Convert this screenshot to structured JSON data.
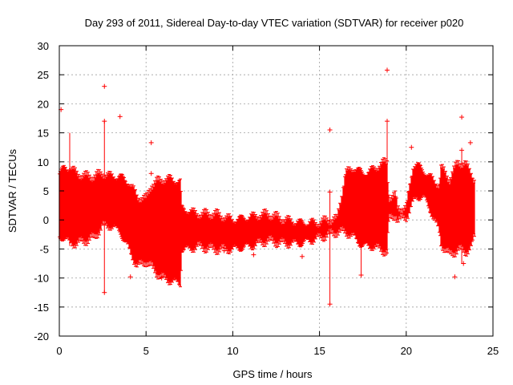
{
  "chart_data": {
    "type": "scatter",
    "title": "Day 293 of 2011, Sidereal Day-to-day VTEC variation (SDTVAR) for receiver p020",
    "xlabel": "GPS time / hours",
    "ylabel": "SDTVAR / TECUs",
    "xlim": [
      0,
      25
    ],
    "ylim": [
      -20,
      30
    ],
    "xticks": [
      0,
      5,
      10,
      15,
      20,
      25
    ],
    "yticks": [
      -20,
      -15,
      -10,
      -5,
      0,
      5,
      10,
      15,
      20,
      25,
      30
    ],
    "grid": true,
    "series": [
      {
        "name": "SDTVAR",
        "color": "#ff0000",
        "marker": "+",
        "envelope": {
          "x": [
            0.0,
            0.3,
            0.6,
            1.0,
            1.5,
            2.0,
            2.5,
            3.0,
            3.5,
            4.0,
            4.5,
            5.0,
            5.3,
            5.6,
            6.0,
            6.5,
            7.0,
            7.05,
            7.5,
            8.0,
            9.0,
            10.0,
            11.0,
            12.0,
            13.0,
            14.0,
            15.0,
            15.5,
            16.0,
            16.5,
            17.0,
            17.5,
            18.0,
            18.5,
            18.9,
            19.0,
            19.4,
            19.5,
            20.0,
            20.4,
            20.6,
            21.0,
            21.5,
            21.9,
            22.0,
            22.5,
            23.0,
            23.4,
            23.8,
            23.9
          ],
          "high": [
            8,
            9,
            9,
            8,
            7.5,
            7.5,
            8,
            7.5,
            7.5,
            6.5,
            4,
            3.5,
            6,
            6.5,
            7,
            7,
            6.5,
            2,
            1.5,
            1,
            1,
            0,
            0.5,
            1,
            0,
            -0.5,
            -0.5,
            0,
            0,
            8,
            9,
            8,
            8.5,
            9.5,
            10,
            4,
            4,
            2,
            2,
            9.5,
            9.5,
            8.5,
            7,
            6,
            9,
            7,
            10,
            9.5,
            8,
            7
          ],
          "low": [
            -3,
            -3,
            -4,
            -4,
            -3.5,
            -3,
            -1,
            -1,
            -2,
            -5,
            -8,
            -7,
            -8,
            -9,
            -10,
            -10.5,
            -11,
            -5,
            -5,
            -4.5,
            -5,
            -5,
            -4.5,
            -3.5,
            -4,
            -4,
            -3,
            -2.5,
            -2,
            -2,
            -3,
            -4.5,
            -4.5,
            -5,
            -5.5,
            0,
            1,
            0,
            0.5,
            3,
            4,
            4,
            1,
            -2,
            -4,
            -6,
            -5,
            -5.5,
            -4.5,
            -3
          ]
        },
        "outliers": [
          {
            "x": 0.1,
            "y": 19
          },
          {
            "x": 2.6,
            "y": 23
          },
          {
            "x": 2.6,
            "y": 17
          },
          {
            "x": 2.6,
            "y": -12.5
          },
          {
            "x": 3.5,
            "y": 17.8
          },
          {
            "x": 4.1,
            "y": -9.8
          },
          {
            "x": 5.3,
            "y": 13.3
          },
          {
            "x": 5.3,
            "y": 8
          },
          {
            "x": 5.9,
            "y": -10
          },
          {
            "x": 9.5,
            "y": -5.3
          },
          {
            "x": 11.2,
            "y": -6
          },
          {
            "x": 14.0,
            "y": -6.3
          },
          {
            "x": 15.6,
            "y": 15.5
          },
          {
            "x": 15.6,
            "y": -14.5
          },
          {
            "x": 15.6,
            "y": 4.8
          },
          {
            "x": 17.4,
            "y": -9.5
          },
          {
            "x": 18.9,
            "y": 25.8
          },
          {
            "x": 18.9,
            "y": 17
          },
          {
            "x": 20.3,
            "y": 12.5
          },
          {
            "x": 22.8,
            "y": -9.8
          },
          {
            "x": 23.2,
            "y": 17.7
          },
          {
            "x": 23.2,
            "y": 12
          },
          {
            "x": 23.3,
            "y": -7.5
          },
          {
            "x": 23.7,
            "y": 13.3
          }
        ],
        "spikes": [
          {
            "x": 0.6,
            "low": -4.5,
            "high": 15
          },
          {
            "x": 2.6,
            "low": -12.5,
            "high": 17
          },
          {
            "x": 15.6,
            "low": -14.5,
            "high": 4.5
          },
          {
            "x": 17.4,
            "low": -9.5,
            "high": 9
          },
          {
            "x": 18.9,
            "low": -6,
            "high": 17
          },
          {
            "x": 23.2,
            "low": -7.5,
            "high": 12
          }
        ]
      }
    ]
  }
}
